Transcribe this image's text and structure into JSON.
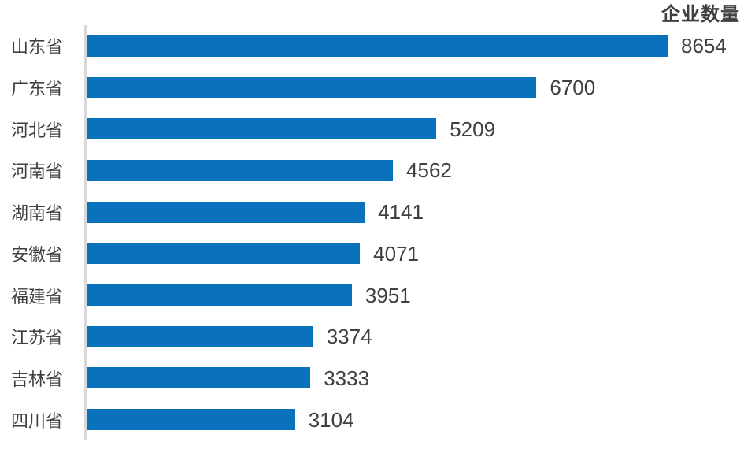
{
  "chart_data": {
    "type": "bar",
    "orientation": "horizontal",
    "title": "企业数量",
    "categories": [
      "山东省",
      "广东省",
      "河北省",
      "河南省",
      "湖南省",
      "安徽省",
      "福建省",
      "江苏省",
      "吉林省",
      "四川省"
    ],
    "values": [
      8654,
      6700,
      5209,
      4562,
      4141,
      4071,
      3951,
      3374,
      3333,
      3104
    ],
    "xlabel": "",
    "ylabel": "",
    "xlim": [
      0,
      8654
    ],
    "grid": false,
    "legend": false,
    "value_labels_shown": true
  },
  "colors": {
    "bar": "#0a72bd",
    "axis_line": "#d9d9d9",
    "title_text": "#404040",
    "value_text": "#404040",
    "category_text": "#3f3f3f"
  }
}
